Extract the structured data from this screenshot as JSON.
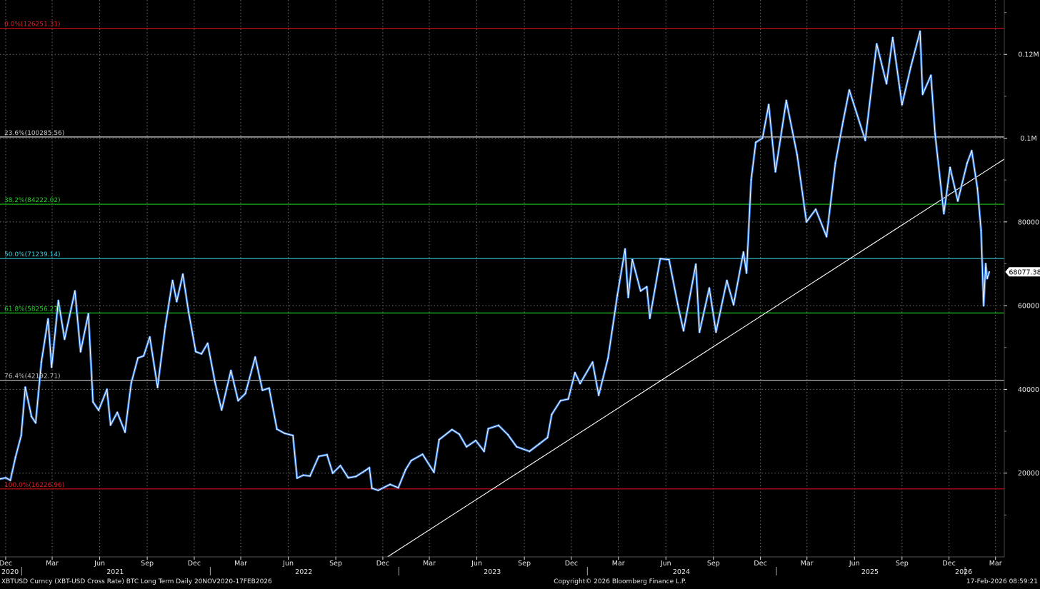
{
  "footer": {
    "description": "XBTUSD Curncy (XBT-USD Cross Rate) BTC Long Term Daily 20NOV2020-17FEB2026",
    "copyright": "Copyright© 2026 Bloomberg Finance L.P.",
    "timestamp": "17-Feb-2026 08:59:21"
  },
  "colors": {
    "background": "#000000",
    "price_line": "#FFFFFF",
    "price_shade": "#3C8CFF",
    "trendline": "#FFFFFF",
    "grid": "#6E6E6E",
    "fib_0": "#D0101A",
    "fib_236": "#D8D8D8",
    "fib_382": "#1EC81E",
    "fib_500": "#34C6D6",
    "fib_618": "#1EC81E",
    "fib_764": "#BDBDBD",
    "fib_100": "#D0101A",
    "fib_0_text": "#E0202A",
    "fib_236_text": "#C8C8C8",
    "fib_382_text": "#22D022",
    "fib_500_text": "#3CCFE0",
    "fib_618_text": "#22D022",
    "fib_764_text": "#BDBDBD",
    "fib_100_text": "#E0202A"
  },
  "chart_data": {
    "type": "line",
    "title": "",
    "series": [
      {
        "points": [
          [
            "2020-11-20",
            18600
          ],
          [
            "2020-12-01",
            18900
          ],
          [
            "2020-12-10",
            18300
          ],
          [
            "2020-12-20",
            23800
          ],
          [
            "2020-12-31",
            29000
          ],
          [
            "2021-01-08",
            40500
          ],
          [
            "2021-01-20",
            33500
          ],
          [
            "2021-01-28",
            32000
          ],
          [
            "2021-02-08",
            46500
          ],
          [
            "2021-02-21",
            56800
          ],
          [
            "2021-02-28",
            45300
          ],
          [
            "2021-03-13",
            61200
          ],
          [
            "2021-03-25",
            52000
          ],
          [
            "2021-04-14",
            63500
          ],
          [
            "2021-04-25",
            49000
          ],
          [
            "2021-05-10",
            58000
          ],
          [
            "2021-05-19",
            37000
          ],
          [
            "2021-05-30",
            35000
          ],
          [
            "2021-06-15",
            40000
          ],
          [
            "2021-06-22",
            31500
          ],
          [
            "2021-07-05",
            34500
          ],
          [
            "2021-07-20",
            29800
          ],
          [
            "2021-08-01",
            41500
          ],
          [
            "2021-08-14",
            47500
          ],
          [
            "2021-08-25",
            48000
          ],
          [
            "2021-09-06",
            52500
          ],
          [
            "2021-09-21",
            40500
          ],
          [
            "2021-10-06",
            55000
          ],
          [
            "2021-10-20",
            66000
          ],
          [
            "2021-10-28",
            61000
          ],
          [
            "2021-11-09",
            67500
          ],
          [
            "2021-11-20",
            58500
          ],
          [
            "2021-12-04",
            49000
          ],
          [
            "2021-12-15",
            48500
          ],
          [
            "2021-12-27",
            51000
          ],
          [
            "2022-01-10",
            41800
          ],
          [
            "2022-01-23",
            35100
          ],
          [
            "2022-02-10",
            44500
          ],
          [
            "2022-02-24",
            37300
          ],
          [
            "2022-03-10",
            39000
          ],
          [
            "2022-03-29",
            47700
          ],
          [
            "2022-04-12",
            39800
          ],
          [
            "2022-04-25",
            40300
          ],
          [
            "2022-05-10",
            30500
          ],
          [
            "2022-05-25",
            29500
          ],
          [
            "2022-06-10",
            29000
          ],
          [
            "2022-06-18",
            18800
          ],
          [
            "2022-06-30",
            19500
          ],
          [
            "2022-07-13",
            19300
          ],
          [
            "2022-07-30",
            24000
          ],
          [
            "2022-08-15",
            24400
          ],
          [
            "2022-08-26",
            20000
          ],
          [
            "2022-09-10",
            21800
          ],
          [
            "2022-09-25",
            18900
          ],
          [
            "2022-10-10",
            19200
          ],
          [
            "2022-10-28",
            20600
          ],
          [
            "2022-11-05",
            21300
          ],
          [
            "2022-11-10",
            16400
          ],
          [
            "2022-11-22",
            15900
          ],
          [
            "2022-12-15",
            17300
          ],
          [
            "2022-12-31",
            16500
          ],
          [
            "2023-01-14",
            20800
          ],
          [
            "2023-01-25",
            23000
          ],
          [
            "2023-02-16",
            24500
          ],
          [
            "2023-03-10",
            20200
          ],
          [
            "2023-03-20",
            28000
          ],
          [
            "2023-04-14",
            30400
          ],
          [
            "2023-04-28",
            29300
          ],
          [
            "2023-05-12",
            26300
          ],
          [
            "2023-05-30",
            27800
          ],
          [
            "2023-06-15",
            25200
          ],
          [
            "2023-06-23",
            30600
          ],
          [
            "2023-07-13",
            31400
          ],
          [
            "2023-07-31",
            29200
          ],
          [
            "2023-08-17",
            26300
          ],
          [
            "2023-09-11",
            25200
          ],
          [
            "2023-09-30",
            27000
          ],
          [
            "2023-10-16",
            28500
          ],
          [
            "2023-10-24",
            34000
          ],
          [
            "2023-11-10",
            37300
          ],
          [
            "2023-11-25",
            37700
          ],
          [
            "2023-12-08",
            44000
          ],
          [
            "2023-12-18",
            41400
          ],
          [
            "2024-01-11",
            46500
          ],
          [
            "2024-01-23",
            38600
          ],
          [
            "2024-02-10",
            47500
          ],
          [
            "2024-02-28",
            62500
          ],
          [
            "2024-03-14",
            73500
          ],
          [
            "2024-03-20",
            62000
          ],
          [
            "2024-03-28",
            71000
          ],
          [
            "2024-04-13",
            63500
          ],
          [
            "2024-04-25",
            64500
          ],
          [
            "2024-05-01",
            57000
          ],
          [
            "2024-05-21",
            71200
          ],
          [
            "2024-06-07",
            71000
          ],
          [
            "2024-06-24",
            60300
          ],
          [
            "2024-07-05",
            54000
          ],
          [
            "2024-07-29",
            69900
          ],
          [
            "2024-08-05",
            53700
          ],
          [
            "2024-08-24",
            64200
          ],
          [
            "2024-09-06",
            53700
          ],
          [
            "2024-09-27",
            66000
          ],
          [
            "2024-10-10",
            60200
          ],
          [
            "2024-10-29",
            72800
          ],
          [
            "2024-11-04",
            67800
          ],
          [
            "2024-11-13",
            90000
          ],
          [
            "2024-11-22",
            99000
          ],
          [
            "2024-12-05",
            100000
          ],
          [
            "2024-12-17",
            108000
          ],
          [
            "2024-12-30",
            92000
          ],
          [
            "2025-01-20",
            109000
          ],
          [
            "2025-02-10",
            96000
          ],
          [
            "2025-02-28",
            80000
          ],
          [
            "2025-03-18",
            83000
          ],
          [
            "2025-04-08",
            76500
          ],
          [
            "2025-04-25",
            94000
          ],
          [
            "2025-05-10",
            104000
          ],
          [
            "2025-05-22",
            111500
          ],
          [
            "2025-06-22",
            99500
          ],
          [
            "2025-07-14",
            122500
          ],
          [
            "2025-08-02",
            113000
          ],
          [
            "2025-08-14",
            124000
          ],
          [
            "2025-09-01",
            108000
          ],
          [
            "2025-09-18",
            117000
          ],
          [
            "2025-10-06",
            125500
          ],
          [
            "2025-10-11",
            110500
          ],
          [
            "2025-10-27",
            115000
          ],
          [
            "2025-11-04",
            101000
          ],
          [
            "2025-11-21",
            82000
          ],
          [
            "2025-12-03",
            93000
          ],
          [
            "2025-12-18",
            85000
          ],
          [
            "2026-01-05",
            94000
          ],
          [
            "2026-01-14",
            97000
          ],
          [
            "2026-01-25",
            88000
          ],
          [
            "2026-02-01",
            78000
          ],
          [
            "2026-02-06",
            60000
          ],
          [
            "2026-02-10",
            70000
          ],
          [
            "2026-02-13",
            66500
          ],
          [
            "2026-02-17",
            68077
          ]
        ]
      }
    ],
    "last_value_label": "68077.38",
    "ylim": [
      0,
      133000
    ],
    "xlim": [
      "2020-11-20",
      "2026-03-18"
    ],
    "y_ticks": [
      {
        "value": 20000,
        "label": "20000"
      },
      {
        "value": 40000,
        "label": "40000"
      },
      {
        "value": 60000,
        "label": "60000"
      },
      {
        "value": 80000,
        "label": "80000"
      },
      {
        "value": 100000,
        "label": "0.1M"
      },
      {
        "value": 120000,
        "label": "0.12M"
      }
    ],
    "x_ticks": [
      {
        "date": "2020-12-01",
        "label": "Dec"
      },
      {
        "date": "2021-03-01",
        "label": "Mar"
      },
      {
        "date": "2021-06-01",
        "label": "Jun"
      },
      {
        "date": "2021-09-01",
        "label": "Sep"
      },
      {
        "date": "2021-12-01",
        "label": "Dec"
      },
      {
        "date": "2022-03-01",
        "label": "Mar"
      },
      {
        "date": "2022-06-01",
        "label": "Jun"
      },
      {
        "date": "2022-09-01",
        "label": "Sep"
      },
      {
        "date": "2022-12-01",
        "label": "Dec"
      },
      {
        "date": "2023-03-01",
        "label": "Mar"
      },
      {
        "date": "2023-06-01",
        "label": "Jun"
      },
      {
        "date": "2023-09-01",
        "label": "Sep"
      },
      {
        "date": "2023-12-01",
        "label": "Dec"
      },
      {
        "date": "2024-03-01",
        "label": "Mar"
      },
      {
        "date": "2024-06-01",
        "label": "Jun"
      },
      {
        "date": "2024-09-01",
        "label": "Sep"
      },
      {
        "date": "2024-12-01",
        "label": "Dec"
      },
      {
        "date": "2025-03-01",
        "label": "Mar"
      },
      {
        "date": "2025-06-01",
        "label": "Jun"
      },
      {
        "date": "2025-09-01",
        "label": "Sep"
      },
      {
        "date": "2025-12-01",
        "label": "Dec"
      },
      {
        "date": "2026-03-01",
        "label": "Mar"
      }
    ],
    "year_labels": [
      {
        "date": "2020-12-01",
        "label": "2020",
        "align": "start"
      },
      {
        "date": "2021-07-01",
        "label": "2021",
        "align": "middle"
      },
      {
        "date": "2022-07-01",
        "label": "2022",
        "align": "middle"
      },
      {
        "date": "2023-07-01",
        "label": "2023",
        "align": "middle"
      },
      {
        "date": "2024-07-01",
        "label": "2024",
        "align": "middle"
      },
      {
        "date": "2025-07-01",
        "label": "2025",
        "align": "middle"
      },
      {
        "date": "2026-01-01",
        "label": "2026",
        "align": "start"
      }
    ],
    "fib_levels": [
      {
        "label": "0.0%(126251.31)",
        "value": 126251.31,
        "color_key": "fib_0"
      },
      {
        "label": "23.6%(100285.56)",
        "value": 100285.56,
        "color_key": "fib_236"
      },
      {
        "label": "38.2%(84222.02)",
        "value": 84222.02,
        "color_key": "fib_382"
      },
      {
        "label": "50.0%(71239.14)",
        "value": 71239.14,
        "color_key": "fib_500"
      },
      {
        "label": "61.8%(58256.27)",
        "value": 58256.27,
        "color_key": "fib_618"
      },
      {
        "label": "76.4%(42192.71)",
        "value": 42192.71,
        "color_key": "fib_764"
      },
      {
        "label": "100.0%(16226.96)",
        "value": 16226.96,
        "color_key": "fib_100"
      }
    ],
    "trendline": {
      "start": [
        "2022-12-10",
        0
      ],
      "end": [
        "2026-03-18",
        95000
      ]
    },
    "grid": true
  }
}
